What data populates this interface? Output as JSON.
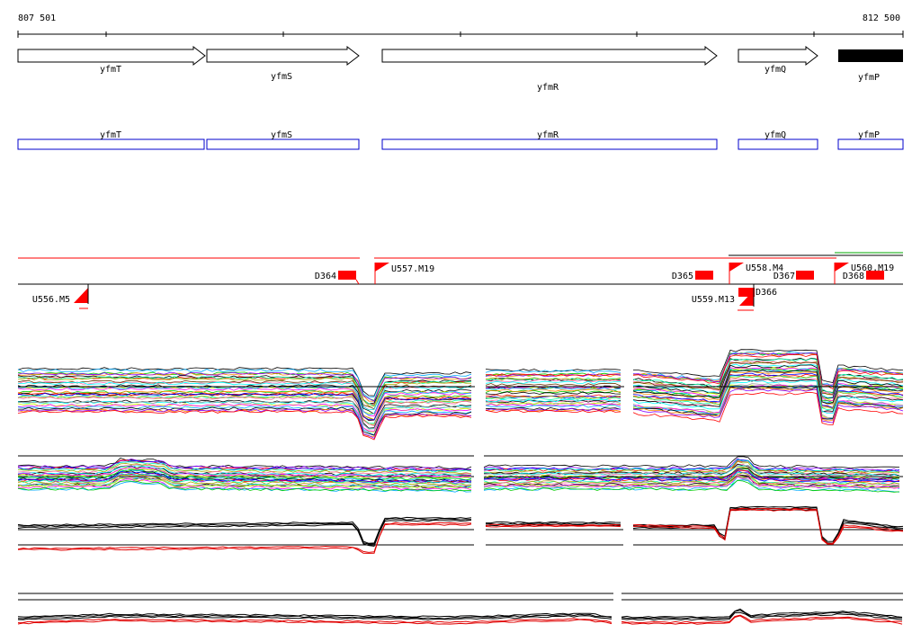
{
  "coords": {
    "start": "807 501",
    "end": "812 500"
  },
  "genes": [
    {
      "name": "yfmT",
      "strand": "+",
      "filled": false
    },
    {
      "name": "yfmS",
      "strand": "+",
      "filled": false
    },
    {
      "name": "yfmR",
      "strand": "+",
      "filled": false
    },
    {
      "name": "yfmQ",
      "strand": "+",
      "filled": false
    },
    {
      "name": "yfmP",
      "strand": "+",
      "filled": true
    }
  ],
  "cds_boxes": [
    {
      "name": "yfmT"
    },
    {
      "name": "yfmS"
    },
    {
      "name": "yfmR"
    },
    {
      "name": "yfmQ"
    },
    {
      "name": "yfmP"
    }
  ],
  "features": {
    "upper": [
      {
        "label": "D364",
        "kind": "block"
      },
      {
        "label": "U557.M19",
        "kind": "flag"
      },
      {
        "label": "D365",
        "kind": "block"
      },
      {
        "label": "U558.M4",
        "kind": "flag"
      },
      {
        "label": "D367",
        "kind": "block"
      },
      {
        "label": "U560.M19",
        "kind": "flag"
      },
      {
        "label": "D368",
        "kind": "block"
      }
    ],
    "lower": [
      {
        "label": "U556.M5",
        "kind": "flag"
      },
      {
        "label": "D366",
        "kind": "block"
      },
      {
        "label": "U559.M13",
        "kind": "flag"
      }
    ]
  },
  "colors": {
    "gene_outline": "#000000",
    "cds_outline": "#0000cc",
    "feature": "#ff0000",
    "average_profile": "#000000",
    "average_profile_2": "#e00000",
    "top_green_line": "#00aa00"
  },
  "expression_palette": [
    "#ff00ff",
    "#00aaff",
    "#00cc00",
    "#ff8800",
    "#8800ff",
    "#ff0000",
    "#0000ff",
    "#00ffaa",
    "#aaaa00",
    "#ff66aa",
    "#663300",
    "#00ffff",
    "#999999",
    "#ccff00"
  ]
}
